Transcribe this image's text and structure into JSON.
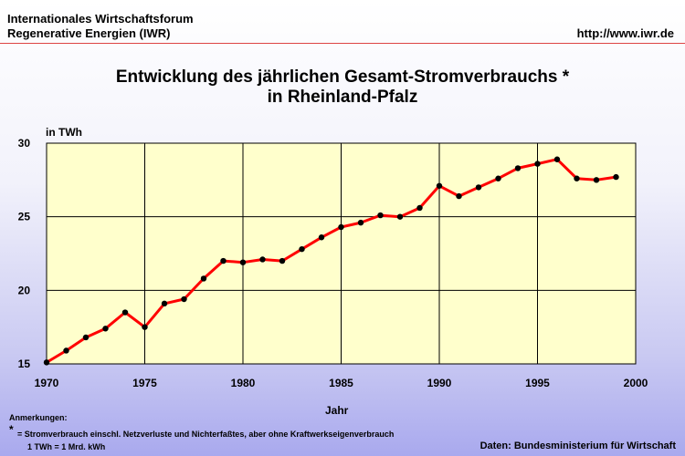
{
  "header": {
    "org_line1": "Internationales Wirtschaftsforum",
    "org_line2": "Regenerative Energien (IWR)",
    "url": "http://www.iwr.de"
  },
  "notes": {
    "heading": "Anmerkungen:",
    "star": "*",
    "line1": "= Stromverbrauch einschl. Netzverluste und Nichterfaßtes, aber ohne Kraftwerkseigenverbrauch",
    "line2": "1 TWh = 1 Mrd. kWh"
  },
  "source": "Daten: Bundesministerium für Wirtschaft",
  "colors": {
    "plot_bg": "#ffffcc",
    "line": "#ff0000",
    "marker": "#000000",
    "grid": "#000000"
  },
  "chart_data": {
    "type": "line",
    "title_line1": "Entwicklung des jährlichen Gesamt-Stromverbrauchs *",
    "title_line2": "in Rheinland-Pfalz",
    "ylabel": "in TWh",
    "xlabel": "Jahr",
    "xlim": [
      1970,
      2000
    ],
    "ylim": [
      15,
      30
    ],
    "xticks": [
      1970,
      1975,
      1980,
      1985,
      1990,
      1995,
      2000
    ],
    "yticks": [
      15,
      20,
      25,
      30
    ],
    "grid": true,
    "x": [
      1970,
      1971,
      1972,
      1973,
      1974,
      1975,
      1976,
      1977,
      1978,
      1979,
      1980,
      1981,
      1982,
      1983,
      1984,
      1985,
      1986,
      1987,
      1988,
      1989,
      1990,
      1991,
      1992,
      1993,
      1994,
      1995,
      1996,
      1997,
      1998,
      1999
    ],
    "y": [
      15.1,
      15.9,
      16.8,
      17.4,
      18.5,
      17.5,
      19.1,
      19.4,
      20.8,
      22.0,
      21.9,
      22.1,
      22.0,
      22.8,
      23.6,
      24.3,
      24.6,
      25.1,
      25.0,
      25.6,
      27.1,
      26.4,
      27.0,
      27.6,
      28.3,
      28.6,
      28.9,
      27.6,
      27.5,
      27.7
    ]
  }
}
